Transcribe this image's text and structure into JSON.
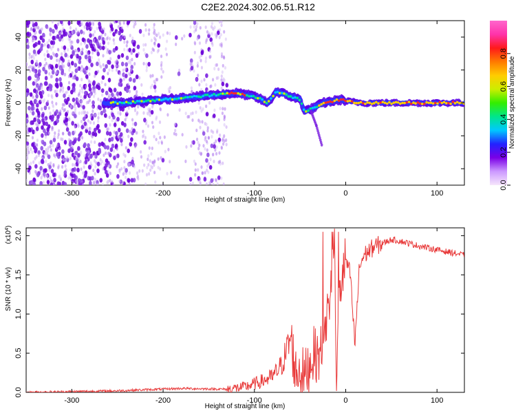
{
  "title": "C2E2.2024.302.06.51.R12",
  "chart_data": [
    {
      "type": "heatmap",
      "xlabel": "Height of straight line (km)",
      "ylabel": "Frequency (Hz)",
      "xlim": [
        -350,
        130
      ],
      "ylim": [
        -50,
        50
      ],
      "x_ticks": [
        -300,
        -200,
        -100,
        0,
        100
      ],
      "y_ticks": [
        -40,
        -20,
        0,
        20,
        40
      ],
      "colorbar": {
        "label": "Normalized spectral amplitude",
        "range": [
          0,
          1
        ],
        "ticks": [
          "0.0",
          "0.2",
          "0.4",
          "0.6",
          "0.8"
        ],
        "colors": [
          "#f6e6fb",
          "#cc99ff",
          "#7a00e6",
          "#2222ff",
          "#00c8ff",
          "#00e68c",
          "#33ee00",
          "#ccee00",
          "#ffcc00",
          "#ff7a00",
          "#ff1a1a",
          "#ff33aa",
          "#ff66cc"
        ]
      },
      "signal_track": [
        {
          "x": -265,
          "y": 0
        },
        {
          "x": -240,
          "y": 0
        },
        {
          "x": -220,
          "y": 1
        },
        {
          "x": -200,
          "y": 2
        },
        {
          "x": -180,
          "y": 3
        },
        {
          "x": -160,
          "y": 4
        },
        {
          "x": -140,
          "y": 5
        },
        {
          "x": -120,
          "y": 6
        },
        {
          "x": -100,
          "y": 4
        },
        {
          "x": -85,
          "y": 0
        },
        {
          "x": -76,
          "y": 7
        },
        {
          "x": -65,
          "y": 5
        },
        {
          "x": -50,
          "y": 2
        },
        {
          "x": -45,
          "y": -5
        },
        {
          "x": -35,
          "y": -3
        },
        {
          "x": -25,
          "y": 0
        },
        {
          "x": -15,
          "y": 1
        },
        {
          "x": -5,
          "y": 2
        },
        {
          "x": 0,
          "y": 1
        },
        {
          "x": 20,
          "y": 0
        },
        {
          "x": 60,
          "y": 0
        },
        {
          "x": 100,
          "y": 0
        },
        {
          "x": 130,
          "y": 0
        }
      ],
      "branch_track": [
        {
          "x": -38,
          "y": -5
        },
        {
          "x": -32,
          "y": -14
        },
        {
          "x": -26,
          "y": -26
        }
      ]
    },
    {
      "type": "line",
      "xlabel": "Height of straight line (km)",
      "ylabel": "SNR (10 * v/v)",
      "y_multiplier": "(x10",
      "y_multiplier_exp": "4",
      "y_multiplier_close": ")",
      "xlim": [
        -350,
        130
      ],
      "ylim": [
        0,
        2.1
      ],
      "x_ticks": [
        -300,
        -200,
        -100,
        0,
        100
      ],
      "y_ticks": [
        "0.0",
        "0.5",
        "1.0",
        "1.5",
        "2.0"
      ],
      "color": "#e83a3a",
      "series": [
        {
          "x": [
            -350,
            -250,
            -180,
            -130,
            -110,
            -90,
            -80,
            -70,
            -60,
            -55,
            -50,
            -45,
            -40,
            -35,
            -30,
            -25,
            -20,
            -15,
            -12,
            -10,
            -8,
            -5,
            0,
            5,
            10,
            15,
            20,
            30,
            40,
            50,
            60,
            70,
            80,
            100,
            130
          ],
          "y": [
            0.0,
            0.02,
            0.05,
            0.04,
            0.07,
            0.15,
            0.2,
            0.35,
            0.7,
            0.25,
            0.3,
            0.2,
            0.35,
            0.5,
            0.45,
            0.6,
            1.0,
            1.5,
            1.9,
            0.15,
            1.2,
            1.4,
            1.7,
            1.5,
            0.6,
            1.6,
            1.75,
            1.85,
            1.9,
            1.95,
            1.93,
            1.9,
            1.87,
            1.82,
            1.75
          ]
        }
      ]
    }
  ]
}
